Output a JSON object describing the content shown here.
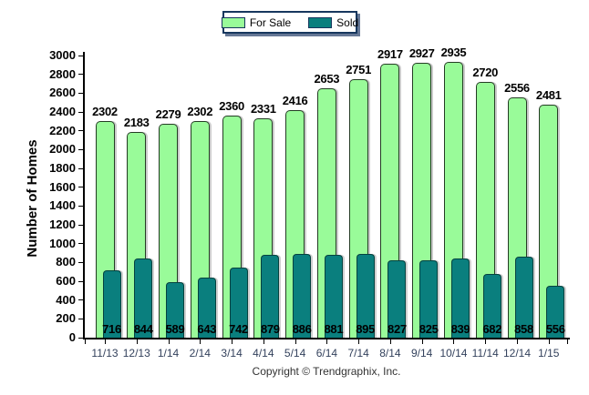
{
  "legend": {
    "position": "top-center"
  },
  "footer": {
    "copyright": "Copyright © Trendgraphix, Inc."
  },
  "colors": {
    "for_sale": "#99FB99",
    "for_sale_border": "#243c24",
    "sold": "#0A7F7E",
    "sold_border": "#05423f",
    "legend_border": "#17375E",
    "axis": "#000000",
    "xtick_label": "#33415c",
    "copyright": "#333333"
  },
  "chart_data": {
    "type": "bar",
    "title": "",
    "xlabel": "",
    "ylabel": "Number of Homes",
    "categories": [
      "11/13",
      "12/13",
      "1/14",
      "2/14",
      "3/14",
      "4/14",
      "5/14",
      "6/14",
      "7/14",
      "8/14",
      "9/14",
      "10/14",
      "11/14",
      "12/14",
      "1/15"
    ],
    "series": [
      {
        "name": "For Sale",
        "color": "#99FB99",
        "values": [
          2302,
          2183,
          2279,
          2302,
          2360,
          2331,
          2416,
          2653,
          2751,
          2917,
          2927,
          2935,
          2720,
          2556,
          2481
        ]
      },
      {
        "name": "Sold",
        "color": "#0A7F7E",
        "values": [
          716,
          844,
          589,
          643,
          742,
          879,
          886,
          881,
          895,
          827,
          825,
          839,
          682,
          858,
          556
        ]
      }
    ],
    "ylim": [
      0,
      3000
    ],
    "ytick_step": 200,
    "yticks": [
      0,
      200,
      400,
      600,
      800,
      1000,
      1200,
      1400,
      1600,
      1800,
      2000,
      2200,
      2400,
      2600,
      2800,
      3000
    ],
    "grid": false,
    "bar_style": "overlapped-rounded-top",
    "value_labels": {
      "for_sale": "above-bar",
      "sold": "inside-bar-bottom"
    },
    "legend_position": "top-center"
  }
}
